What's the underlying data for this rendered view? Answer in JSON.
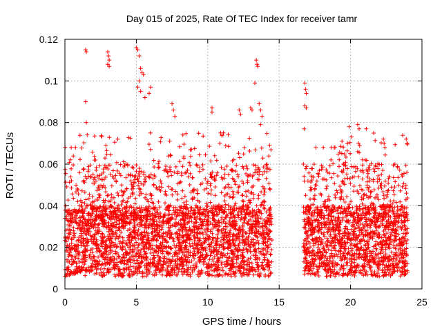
{
  "chart_data": {
    "type": "scatter",
    "title": "Day 015 of 2025, Rate Of TEC Index for receiver tamr",
    "xlabel": "GPS time / hours",
    "ylabel": "ROTI / TECUs",
    "xlim": [
      0,
      25
    ],
    "ylim": [
      0,
      0.12
    ],
    "xticks": [
      0,
      5,
      10,
      15,
      20,
      25
    ],
    "xtick_labels": [
      "0",
      "5",
      "10",
      "15",
      "20",
      "25"
    ],
    "yticks": [
      0,
      0.02,
      0.04,
      0.06,
      0.08,
      0.1,
      0.12
    ],
    "ytick_labels": [
      "0",
      "0.02",
      "0.04",
      "0.06",
      "0.08",
      "0.1",
      "0.12"
    ],
    "grid": true,
    "marker": "+",
    "color": "#ff0000",
    "data_gap_hours": [
      14.5,
      16.7
    ],
    "series": [
      {
        "name": "ROTI",
        "outliers": [
          [
            1.45,
            0.115
          ],
          [
            1.5,
            0.114
          ],
          [
            1.45,
            0.09
          ],
          [
            1.5,
            0.08
          ],
          [
            3.0,
            0.114
          ],
          [
            3.05,
            0.112
          ],
          [
            3.1,
            0.11
          ],
          [
            3.0,
            0.108
          ],
          [
            3.1,
            0.107
          ],
          [
            5.0,
            0.116
          ],
          [
            5.1,
            0.115
          ],
          [
            5.2,
            0.112
          ],
          [
            5.3,
            0.106
          ],
          [
            5.4,
            0.104
          ],
          [
            5.5,
            0.103
          ],
          [
            5.2,
            0.1
          ],
          [
            5.1,
            0.097
          ],
          [
            5.3,
            0.095
          ],
          [
            5.6,
            0.092
          ],
          [
            6.0,
            0.097
          ],
          [
            5.9,
            0.094
          ],
          [
            7.5,
            0.089
          ],
          [
            7.6,
            0.086
          ],
          [
            7.7,
            0.083
          ],
          [
            10.3,
            0.087
          ],
          [
            10.3,
            0.085
          ],
          [
            10.9,
            0.075
          ],
          [
            11.0,
            0.074
          ],
          [
            11.1,
            0.075
          ],
          [
            12.2,
            0.086
          ],
          [
            12.3,
            0.084
          ],
          [
            13.0,
            0.087
          ],
          [
            13.1,
            0.086
          ],
          [
            13.4,
            0.11
          ],
          [
            13.45,
            0.108
          ],
          [
            13.5,
            0.107
          ],
          [
            13.3,
            0.099
          ],
          [
            13.6,
            0.089
          ],
          [
            13.7,
            0.086
          ],
          [
            13.8,
            0.083
          ],
          [
            13.7,
            0.079
          ],
          [
            16.8,
            0.099
          ],
          [
            16.85,
            0.096
          ],
          [
            16.9,
            0.094
          ],
          [
            16.8,
            0.088
          ],
          [
            16.9,
            0.087
          ],
          [
            16.75,
            0.077
          ],
          [
            16.7,
            0.06
          ],
          [
            19.9,
            0.078
          ],
          [
            20.5,
            0.079
          ],
          [
            20.6,
            0.077
          ],
          [
            20.55,
            0.07
          ],
          [
            20.5,
            0.066
          ],
          [
            19.4,
            0.071
          ],
          [
            21.1,
            0.077
          ],
          [
            22.3,
            0.072
          ],
          [
            22.35,
            0.07
          ],
          [
            22.4,
            0.068
          ],
          [
            23.9,
            0.072
          ],
          [
            23.95,
            0.07
          ]
        ]
      }
    ]
  }
}
